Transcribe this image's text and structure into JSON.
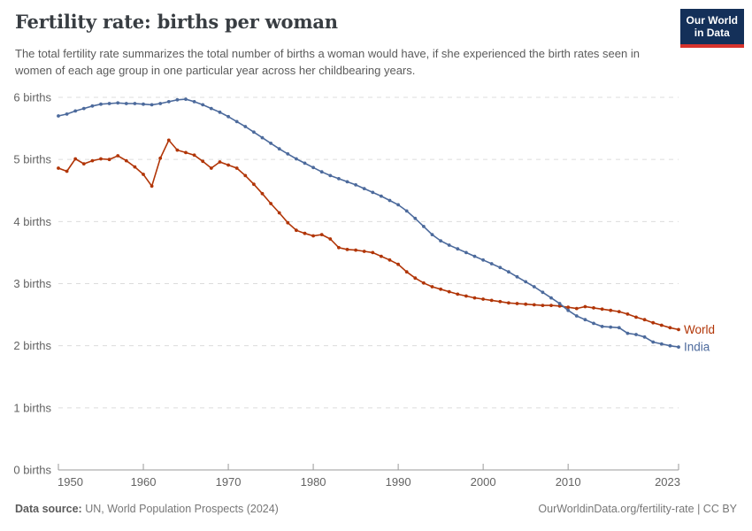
{
  "header": {
    "title": "Fertility rate: births per woman",
    "subtitle": "The total fertility rate summarizes the total number of births a woman would have, if she experienced the birth rates seen in women of each age group in one particular year across her childbearing years.",
    "logo": {
      "line1": "Our World",
      "line2": "in Data",
      "bg_color": "#143059",
      "stripe_color": "#D7332C"
    }
  },
  "footer": {
    "source_label": "Data source:",
    "source_value": "UN, World Population Prospects (2024)",
    "link": "OurWorldinData.org/fertility-rate | CC BY"
  },
  "colors": {
    "world_series": "#B13507",
    "india_series": "#4C6A9C",
    "gridline": "#dcdcdc",
    "axis": "#9a9a9a",
    "tick_text": "#636363"
  },
  "chart_data": {
    "type": "line",
    "title": "Fertility rate: births per woman",
    "xlabel": "",
    "ylabel": "births",
    "xlim": [
      1950,
      2023
    ],
    "ylim": [
      0,
      6
    ],
    "grid": "horizontal-dashed",
    "marker": "circle",
    "legend_position": "end-of-line-labels",
    "xticks": [
      {
        "value": 1950,
        "label": "1950"
      },
      {
        "value": 1960,
        "label": "1960"
      },
      {
        "value": 1970,
        "label": "1970"
      },
      {
        "value": 1980,
        "label": "1980"
      },
      {
        "value": 1990,
        "label": "1990"
      },
      {
        "value": 2000,
        "label": "2000"
      },
      {
        "value": 2010,
        "label": "2010"
      },
      {
        "value": 2023,
        "label": "2023"
      }
    ],
    "yticks": [
      {
        "value": 0,
        "label": "0 births"
      },
      {
        "value": 1,
        "label": "1 births"
      },
      {
        "value": 2,
        "label": "2 births"
      },
      {
        "value": 3,
        "label": "3 births"
      },
      {
        "value": 4,
        "label": "4 births"
      },
      {
        "value": 5,
        "label": "5 births"
      },
      {
        "value": 6,
        "label": "6 births"
      }
    ],
    "x": [
      1950,
      1951,
      1952,
      1953,
      1954,
      1955,
      1956,
      1957,
      1958,
      1959,
      1960,
      1961,
      1962,
      1963,
      1964,
      1965,
      1966,
      1967,
      1968,
      1969,
      1970,
      1971,
      1972,
      1973,
      1974,
      1975,
      1976,
      1977,
      1978,
      1979,
      1980,
      1981,
      1982,
      1983,
      1984,
      1985,
      1986,
      1987,
      1988,
      1989,
      1990,
      1991,
      1992,
      1993,
      1994,
      1995,
      1996,
      1997,
      1998,
      1999,
      2000,
      2001,
      2002,
      2003,
      2004,
      2005,
      2006,
      2007,
      2008,
      2009,
      2010,
      2011,
      2012,
      2013,
      2014,
      2015,
      2016,
      2017,
      2018,
      2019,
      2020,
      2021,
      2022,
      2023
    ],
    "series": [
      {
        "name": "World",
        "color": "#B13507",
        "values": [
          4.86,
          4.81,
          5.01,
          4.93,
          4.98,
          5.01,
          5.0,
          5.06,
          4.98,
          4.88,
          4.76,
          4.57,
          5.02,
          5.31,
          5.15,
          5.11,
          5.07,
          4.97,
          4.86,
          4.96,
          4.91,
          4.86,
          4.74,
          4.6,
          4.45,
          4.29,
          4.14,
          3.98,
          3.86,
          3.81,
          3.77,
          3.79,
          3.72,
          3.58,
          3.55,
          3.54,
          3.52,
          3.5,
          3.44,
          3.38,
          3.31,
          3.19,
          3.09,
          3.01,
          2.95,
          2.91,
          2.87,
          2.83,
          2.8,
          2.77,
          2.75,
          2.73,
          2.71,
          2.69,
          2.68,
          2.67,
          2.66,
          2.65,
          2.65,
          2.64,
          2.62,
          2.6,
          2.63,
          2.61,
          2.59,
          2.57,
          2.55,
          2.51,
          2.46,
          2.42,
          2.37,
          2.33,
          2.29,
          2.26
        ]
      },
      {
        "name": "India",
        "color": "#4C6A9C",
        "values": [
          5.7,
          5.73,
          5.78,
          5.82,
          5.86,
          5.89,
          5.9,
          5.91,
          5.9,
          5.9,
          5.89,
          5.88,
          5.9,
          5.93,
          5.96,
          5.97,
          5.93,
          5.88,
          5.82,
          5.76,
          5.69,
          5.61,
          5.53,
          5.44,
          5.35,
          5.26,
          5.17,
          5.09,
          5.01,
          4.94,
          4.87,
          4.8,
          4.74,
          4.69,
          4.64,
          4.59,
          4.53,
          4.47,
          4.41,
          4.34,
          4.27,
          4.17,
          4.05,
          3.92,
          3.79,
          3.69,
          3.62,
          3.56,
          3.5,
          3.44,
          3.38,
          3.32,
          3.26,
          3.19,
          3.11,
          3.03,
          2.95,
          2.86,
          2.77,
          2.68,
          2.57,
          2.48,
          2.42,
          2.36,
          2.31,
          2.3,
          2.29,
          2.2,
          2.18,
          2.14,
          2.06,
          2.03,
          2.0,
          1.98
        ]
      }
    ]
  }
}
